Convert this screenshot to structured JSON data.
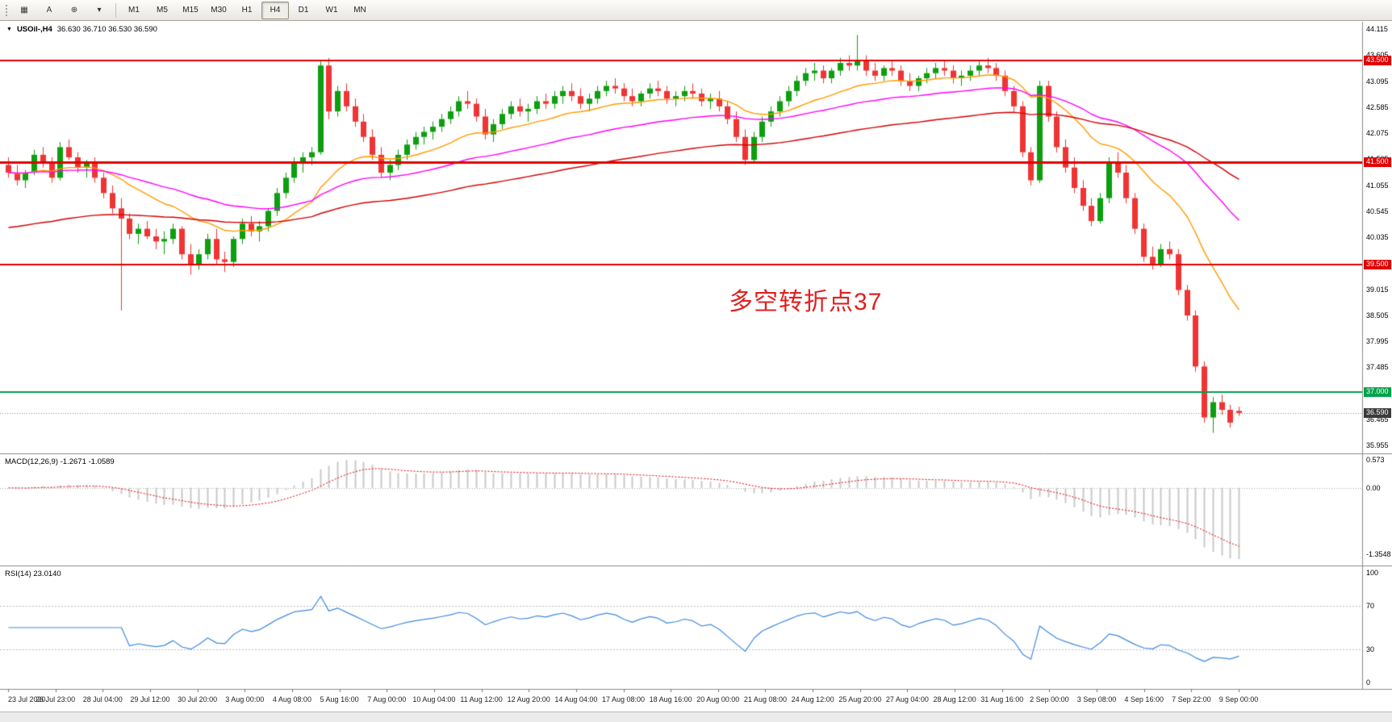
{
  "toolbar": {
    "tool_buttons": [
      {
        "glyph": "▦",
        "button_name": "templates-button",
        "icon_name": "grid-icon"
      },
      {
        "glyph": "A",
        "button_name": "text-tool-button",
        "icon_name": "text-tool-icon"
      },
      {
        "glyph": "⊕",
        "button_name": "crosshair-button",
        "icon_name": "crosshair-icon"
      },
      {
        "glyph": "▾",
        "button_name": "line-tools-dropdown",
        "icon_name": "chevron-down-icon"
      }
    ],
    "timeframes": [
      "M1",
      "M5",
      "M15",
      "M30",
      "H1",
      "H4",
      "D1",
      "W1",
      "MN"
    ],
    "selected_timeframe": "H4"
  },
  "icons": {
    "symbol_caret": "▼"
  },
  "chart_data": {
    "type": "candlestick",
    "title": "USOil-,H4",
    "ohlc_text": "36.630 36.710 36.530 36.590",
    "annotation": {
      "text": "多空转折点37",
      "color": "#e02020"
    },
    "colors": {
      "up": "#0e9e10",
      "down": "#ef3434",
      "ma_fast": "#ff9c00",
      "ma_mid": "#ff00ff",
      "ma_slow": "#d40000",
      "hline_red": "#e00000",
      "hline_green": "#00a14b",
      "current_badge": "#3a3a3a",
      "macd_hist": "#c9c9c9",
      "macd_signal": "#e00000",
      "rsi_line": "#3f8ae0"
    },
    "price_axis": {
      "min": 35.955,
      "max": 44.115,
      "ticks": [
        44.115,
        43.605,
        43.095,
        42.585,
        42.075,
        41.565,
        41.055,
        40.545,
        40.035,
        39.525,
        39.015,
        38.505,
        37.995,
        37.485,
        36.975,
        36.465,
        35.955
      ]
    },
    "horizontal_lines": [
      {
        "price": 43.5,
        "label": "43.500",
        "color": "#e00000",
        "width": 2
      },
      {
        "price": 41.5,
        "label": "41.500",
        "color": "#e00000",
        "width": 3
      },
      {
        "price": 39.5,
        "label": "39.500",
        "color": "#e00000",
        "width": 2
      },
      {
        "price": 37.0,
        "label": "37.000",
        "color": "#00a14b",
        "width": 2
      }
    ],
    "current_price": {
      "value": 36.59,
      "label": "36.590"
    },
    "moving_averages": [
      {
        "period": 18,
        "color": "#ff9c00",
        "seed": null
      },
      {
        "period": 45,
        "color": "#ff00ff",
        "seed": null
      },
      {
        "period": 90,
        "color": "#d40000",
        "seed": 40.2
      }
    ],
    "candles": [
      [
        41.45,
        41.6,
        41.2,
        41.3
      ],
      [
        41.3,
        41.45,
        41.05,
        41.15
      ],
      [
        41.15,
        41.35,
        41.0,
        41.3
      ],
      [
        41.3,
        41.75,
        41.25,
        41.65
      ],
      [
        41.65,
        41.8,
        41.4,
        41.5
      ],
      [
        41.5,
        41.6,
        41.1,
        41.2
      ],
      [
        41.2,
        41.9,
        41.15,
        41.8
      ],
      [
        41.8,
        41.95,
        41.55,
        41.6
      ],
      [
        41.6,
        41.7,
        41.3,
        41.4
      ],
      [
        41.4,
        41.55,
        41.2,
        41.5
      ],
      [
        41.5,
        41.6,
        41.1,
        41.2
      ],
      [
        41.2,
        41.3,
        40.8,
        40.9
      ],
      [
        40.9,
        41.05,
        40.5,
        40.6
      ],
      [
        40.6,
        40.8,
        38.6,
        40.4
      ],
      [
        40.4,
        40.5,
        40.0,
        40.1
      ],
      [
        40.1,
        40.3,
        39.9,
        40.2
      ],
      [
        40.2,
        40.35,
        40.0,
        40.05
      ],
      [
        40.05,
        40.2,
        39.8,
        39.95
      ],
      [
        39.95,
        40.15,
        39.7,
        40.0
      ],
      [
        40.0,
        40.3,
        39.9,
        40.2
      ],
      [
        40.2,
        40.25,
        39.6,
        39.7
      ],
      [
        39.7,
        39.9,
        39.3,
        39.5
      ],
      [
        39.5,
        39.8,
        39.4,
        39.7
      ],
      [
        39.7,
        40.1,
        39.6,
        40.0
      ],
      [
        40.0,
        40.2,
        39.5,
        39.6
      ],
      [
        39.6,
        39.75,
        39.35,
        39.55
      ],
      [
        39.55,
        40.05,
        39.45,
        40.0
      ],
      [
        40.0,
        40.4,
        39.9,
        40.3
      ],
      [
        40.3,
        40.45,
        40.05,
        40.15
      ],
      [
        40.15,
        40.35,
        39.95,
        40.25
      ],
      [
        40.25,
        40.6,
        40.15,
        40.55
      ],
      [
        40.55,
        41.0,
        40.45,
        40.9
      ],
      [
        40.9,
        41.3,
        40.8,
        41.2
      ],
      [
        41.2,
        41.6,
        41.1,
        41.5
      ],
      [
        41.5,
        41.7,
        41.3,
        41.6
      ],
      [
        41.6,
        41.8,
        41.45,
        41.7
      ],
      [
        41.7,
        43.5,
        41.65,
        43.4
      ],
      [
        43.4,
        43.55,
        42.35,
        42.5
      ],
      [
        42.5,
        43.0,
        42.4,
        42.9
      ],
      [
        42.9,
        43.05,
        42.5,
        42.6
      ],
      [
        42.6,
        42.75,
        42.2,
        42.3
      ],
      [
        42.3,
        42.45,
        41.9,
        42.0
      ],
      [
        42.0,
        42.15,
        41.55,
        41.65
      ],
      [
        41.65,
        41.8,
        41.2,
        41.3
      ],
      [
        41.3,
        41.55,
        41.15,
        41.45
      ],
      [
        41.45,
        41.75,
        41.35,
        41.65
      ],
      [
        41.65,
        41.95,
        41.55,
        41.85
      ],
      [
        41.85,
        42.1,
        41.75,
        42.0
      ],
      [
        42.0,
        42.2,
        41.85,
        42.1
      ],
      [
        42.1,
        42.3,
        41.95,
        42.2
      ],
      [
        42.2,
        42.45,
        42.1,
        42.35
      ],
      [
        42.35,
        42.6,
        42.25,
        42.5
      ],
      [
        42.5,
        42.8,
        42.4,
        42.7
      ],
      [
        42.7,
        42.9,
        42.55,
        42.65
      ],
      [
        42.65,
        42.75,
        42.3,
        42.4
      ],
      [
        42.4,
        42.55,
        41.95,
        42.05
      ],
      [
        42.05,
        42.35,
        41.9,
        42.25
      ],
      [
        42.25,
        42.55,
        42.15,
        42.45
      ],
      [
        42.45,
        42.7,
        42.35,
        42.6
      ],
      [
        42.6,
        42.75,
        42.4,
        42.5
      ],
      [
        42.5,
        42.65,
        42.3,
        42.55
      ],
      [
        42.55,
        42.8,
        42.45,
        42.7
      ],
      [
        42.7,
        42.85,
        42.55,
        42.65
      ],
      [
        42.65,
        42.9,
        42.55,
        42.8
      ],
      [
        42.8,
        43.0,
        42.65,
        42.9
      ],
      [
        42.9,
        43.05,
        42.7,
        42.8
      ],
      [
        42.8,
        42.95,
        42.55,
        42.65
      ],
      [
        42.65,
        42.85,
        42.5,
        42.75
      ],
      [
        42.75,
        43.0,
        42.65,
        42.9
      ],
      [
        42.9,
        43.1,
        42.8,
        43.0
      ],
      [
        43.0,
        43.15,
        42.85,
        42.95
      ],
      [
        42.95,
        43.05,
        42.7,
        42.8
      ],
      [
        42.8,
        42.95,
        42.6,
        42.7
      ],
      [
        42.7,
        42.9,
        42.6,
        42.85
      ],
      [
        42.85,
        43.05,
        42.75,
        42.95
      ],
      [
        42.95,
        43.1,
        42.8,
        42.9
      ],
      [
        42.9,
        43.0,
        42.65,
        42.75
      ],
      [
        42.75,
        42.9,
        42.6,
        42.8
      ],
      [
        42.8,
        43.0,
        42.7,
        42.9
      ],
      [
        42.9,
        43.05,
        42.75,
        42.85
      ],
      [
        42.85,
        42.95,
        42.6,
        42.7
      ],
      [
        42.7,
        42.85,
        42.55,
        42.75
      ],
      [
        42.75,
        42.9,
        42.5,
        42.6
      ],
      [
        42.6,
        42.7,
        42.25,
        42.35
      ],
      [
        42.35,
        42.5,
        41.9,
        42.0
      ],
      [
        42.0,
        42.15,
        41.45,
        41.55
      ],
      [
        41.55,
        42.1,
        41.5,
        42.0
      ],
      [
        42.0,
        42.4,
        41.9,
        42.3
      ],
      [
        42.3,
        42.6,
        42.2,
        42.5
      ],
      [
        42.5,
        42.8,
        42.4,
        42.7
      ],
      [
        42.7,
        43.0,
        42.6,
        42.9
      ],
      [
        42.9,
        43.2,
        42.8,
        43.1
      ],
      [
        43.1,
        43.35,
        43.0,
        43.25
      ],
      [
        43.25,
        43.45,
        43.1,
        43.3
      ],
      [
        43.3,
        43.4,
        43.05,
        43.15
      ],
      [
        43.15,
        43.35,
        43.05,
        43.3
      ],
      [
        43.3,
        43.55,
        43.2,
        43.45
      ],
      [
        43.45,
        43.6,
        43.3,
        43.4
      ],
      [
        43.4,
        44.0,
        43.3,
        43.5
      ],
      [
        43.5,
        43.6,
        43.2,
        43.3
      ],
      [
        43.3,
        43.45,
        43.1,
        43.2
      ],
      [
        43.2,
        43.4,
        43.1,
        43.35
      ],
      [
        43.35,
        43.5,
        43.2,
        43.3
      ],
      [
        43.3,
        43.4,
        43.0,
        43.1
      ],
      [
        43.1,
        43.25,
        42.9,
        43.0
      ],
      [
        43.0,
        43.2,
        42.9,
        43.15
      ],
      [
        43.15,
        43.35,
        43.05,
        43.25
      ],
      [
        43.25,
        43.45,
        43.15,
        43.35
      ],
      [
        43.35,
        43.5,
        43.2,
        43.3
      ],
      [
        43.3,
        43.4,
        43.05,
        43.15
      ],
      [
        43.15,
        43.3,
        43.0,
        43.2
      ],
      [
        43.2,
        43.4,
        43.1,
        43.3
      ],
      [
        43.3,
        43.5,
        43.2,
        43.4
      ],
      [
        43.4,
        43.55,
        43.25,
        43.35
      ],
      [
        43.35,
        43.45,
        43.1,
        43.2
      ],
      [
        43.2,
        43.3,
        42.8,
        42.9
      ],
      [
        42.9,
        43.0,
        42.5,
        42.6
      ],
      [
        42.6,
        42.7,
        41.6,
        41.7
      ],
      [
        41.7,
        41.8,
        41.05,
        41.15
      ],
      [
        41.15,
        43.1,
        41.1,
        43.0
      ],
      [
        43.0,
        43.1,
        42.3,
        42.4
      ],
      [
        42.4,
        42.5,
        41.7,
        41.8
      ],
      [
        41.8,
        41.95,
        41.3,
        41.4
      ],
      [
        41.4,
        41.6,
        40.9,
        41.0
      ],
      [
        41.0,
        41.15,
        40.55,
        40.65
      ],
      [
        40.65,
        40.8,
        40.25,
        40.35
      ],
      [
        40.35,
        40.9,
        40.3,
        40.8
      ],
      [
        40.8,
        41.6,
        40.7,
        41.5
      ],
      [
        41.5,
        41.7,
        41.2,
        41.3
      ],
      [
        41.3,
        41.45,
        40.7,
        40.8
      ],
      [
        40.8,
        40.9,
        40.1,
        40.2
      ],
      [
        40.2,
        40.3,
        39.55,
        39.65
      ],
      [
        39.65,
        39.85,
        39.4,
        39.5
      ],
      [
        39.5,
        39.9,
        39.45,
        39.8
      ],
      [
        39.8,
        39.95,
        39.6,
        39.7
      ],
      [
        39.7,
        39.8,
        38.9,
        39.0
      ],
      [
        39.0,
        39.1,
        38.4,
        38.5
      ],
      [
        38.5,
        38.6,
        37.4,
        37.5
      ],
      [
        37.5,
        37.6,
        36.4,
        36.5
      ],
      [
        36.5,
        36.9,
        36.2,
        36.8
      ],
      [
        36.8,
        36.95,
        36.55,
        36.65
      ],
      [
        36.65,
        36.75,
        36.3,
        36.4
      ],
      [
        36.63,
        36.71,
        36.53,
        36.59
      ]
    ],
    "macd": {
      "params": [
        12,
        26,
        9
      ],
      "label": "MACD(12,26,9) -1.2671 -1.0589",
      "ticks": [
        {
          "v": 0.573,
          "label": "0.573"
        },
        {
          "v": 0,
          "label": "0.00"
        },
        {
          "v": -1.3548,
          "label": "-1.3548"
        }
      ]
    },
    "rsi": {
      "period": 14,
      "label": "RSI(14) 23.0140",
      "levels": [
        70,
        30
      ],
      "ticks": [
        {
          "v": 100,
          "label": "100"
        },
        {
          "v": 70,
          "label": "70"
        },
        {
          "v": 30,
          "label": "30"
        },
        {
          "v": 0,
          "label": "0"
        }
      ]
    },
    "time_axis": [
      "23 Jul 2020",
      "26 Jul 23:00",
      "28 Jul 04:00",
      "29 Jul 12:00",
      "30 Jul 20:00",
      "3 Aug 00:00",
      "4 Aug 08:00",
      "5 Aug 16:00",
      "7 Aug 00:00",
      "10 Aug 04:00",
      "11 Aug 12:00",
      "12 Aug 20:00",
      "14 Aug 04:00",
      "17 Aug 08:00",
      "18 Aug 16:00",
      "20 Aug 00:00",
      "21 Aug 08:00",
      "24 Aug 12:00",
      "25 Aug 20:00",
      "27 Aug 04:00",
      "28 Aug 12:00",
      "31 Aug 16:00",
      "2 Sep 00:00",
      "3 Sep 08:00",
      "4 Sep 16:00",
      "7 Sep 22:00",
      "9 Sep 00:00"
    ]
  }
}
